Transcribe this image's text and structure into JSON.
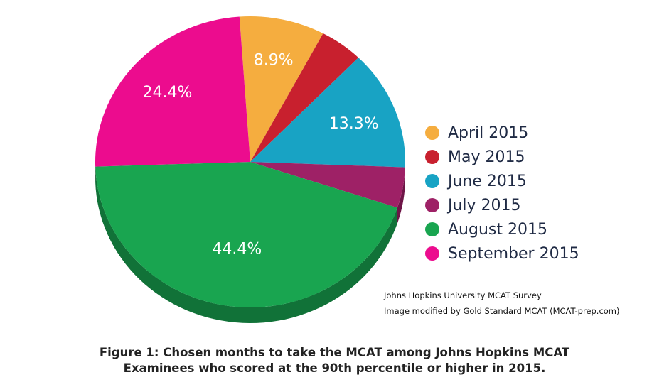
{
  "chart_data": {
    "type": "pie",
    "categories": [
      "April 2015",
      "May 2015",
      "June 2015",
      "July 2015",
      "August 2015",
      "September 2015"
    ],
    "values": [
      8.9,
      4.5,
      13.3,
      4.5,
      44.4,
      24.4
    ],
    "data_labels": [
      "8.9%",
      "",
      "13.3%",
      "",
      "44.4%",
      "24.4%"
    ],
    "colors": [
      "#F5AD3F",
      "#C8202E",
      "#18A3C4",
      "#9E2166",
      "#19A550",
      "#EC0C8E"
    ],
    "side_colors": [
      "#C98526",
      "#8E1620",
      "#0F7A94",
      "#6E1547",
      "#117238",
      "#B0086A"
    ],
    "legend_position": "right"
  },
  "source": {
    "line1": "Johns Hopkins University MCAT Survey",
    "line2": "Image modified by Gold Standard MCAT (MCAT-prep.com)"
  },
  "caption": {
    "line1": "Figure 1: Chosen months to take the MCAT among Johns Hopkins MCAT",
    "line2": "Examinees who scored at the 90th percentile or higher in 2015."
  }
}
